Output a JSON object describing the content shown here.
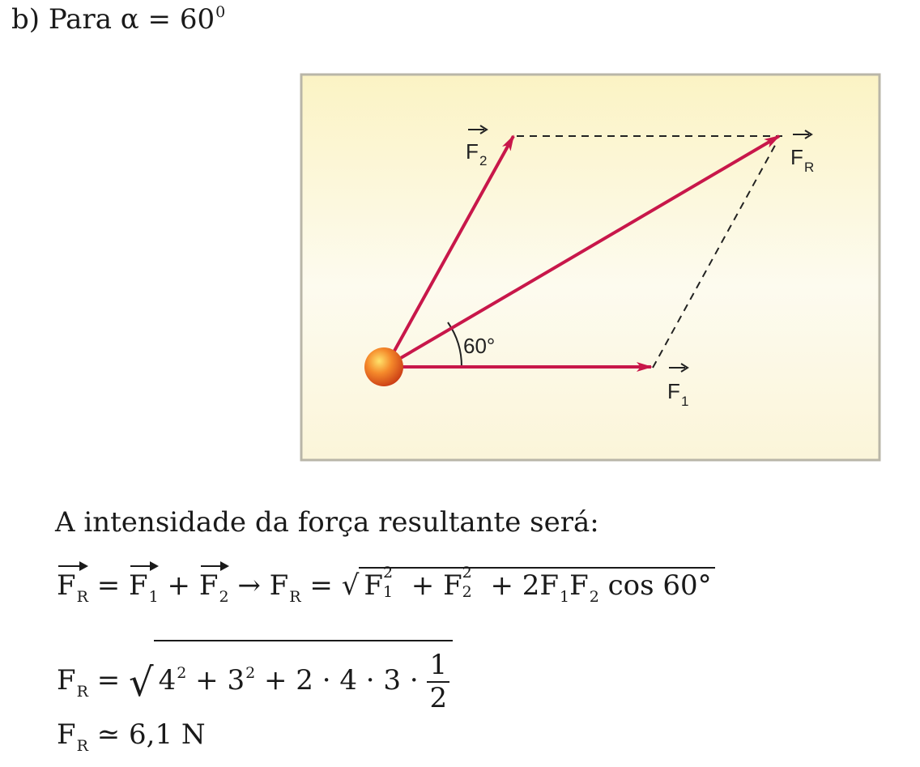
{
  "heading": {
    "label": "b) Para α = 60",
    "degree": "0"
  },
  "figure": {
    "panel_color": "#fbf5d2",
    "arrow_color": "#c8174a",
    "f2_letter": "F",
    "f2_sub": "2",
    "fr_letter": "F",
    "fr_sub": "R",
    "f1_letter": "F",
    "f1_sub": "1",
    "angle_label": "60°"
  },
  "intro": "A intensidade da força resultante será:",
  "eq1": {
    "lhs_letter": "F",
    "lhs_sub": "R",
    "eq": "=",
    "t1_letter": "F",
    "t1_sub": "1",
    "plus": "+",
    "t2_letter": "F",
    "t2_sub": "2",
    "arrow": "→",
    "rhs_letter": "F",
    "rhs_sub": "R",
    "eq2": "=",
    "r_a": "F",
    "r_a_sup": "2",
    "r_a_sub": "1",
    "r_plus1": "+",
    "r_b": "F",
    "r_b_sup": "2",
    "r_b_sub": "2",
    "r_plus2": "+ 2F",
    "r_c_sub": "1",
    "r_d": "F",
    "r_d_sub": "2",
    "r_cos": "cos 60°"
  },
  "eq2": {
    "lhs_letter": "F",
    "lhs_sub": "R",
    "eq": "=",
    "v1": "4",
    "v1_sup": "2",
    "p1": "+ 3",
    "v2_sup": "2",
    "p2": "+ 2 · 4 · 3 ·",
    "frac_num": "1",
    "frac_den": "2"
  },
  "eq3": {
    "lhs_letter": "F",
    "lhs_sub": "R",
    "approx": "≃",
    "value": "6,1 N"
  }
}
